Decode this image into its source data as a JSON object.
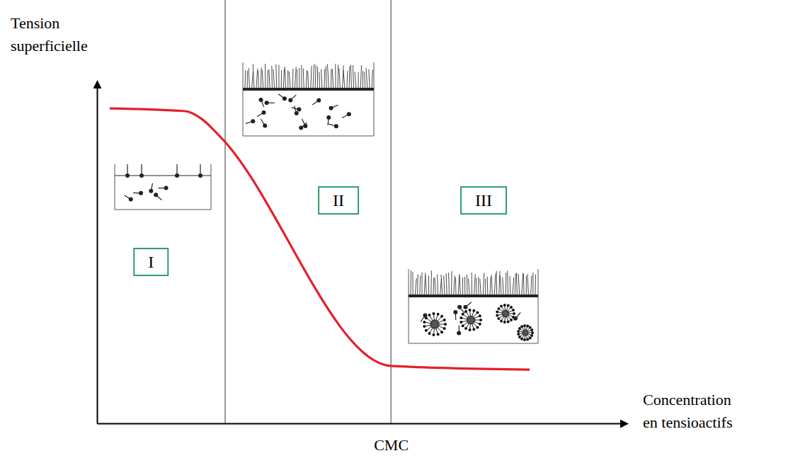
{
  "chart_data": {
    "type": "line",
    "x_label": "Concentration en tensioactifs",
    "y_label": "Tension superficielle",
    "x": [
      0.24,
      1.67,
      1.98,
      2.31,
      5.55,
      8.17
    ],
    "values": [
      9.21,
      9.13,
      8.9,
      8.41,
      1.68,
      1.57
    ],
    "color": "#e3202b",
    "xlim": [
      0,
      10
    ],
    "ylim": [
      0,
      10
    ],
    "xticks": [
      {
        "value": 5.55,
        "label": "CMC"
      }
    ],
    "yticks": [],
    "tick_labels": "x",
    "dividers": [
      2.42,
      5.55
    ],
    "annotations": [
      {
        "text": "I",
        "x": 1.02,
        "y": 4.72
      },
      {
        "text": "II",
        "x": 4.56,
        "y": 6.52
      },
      {
        "text": "III",
        "x": 7.3,
        "y": 6.52
      }
    ]
  }
}
